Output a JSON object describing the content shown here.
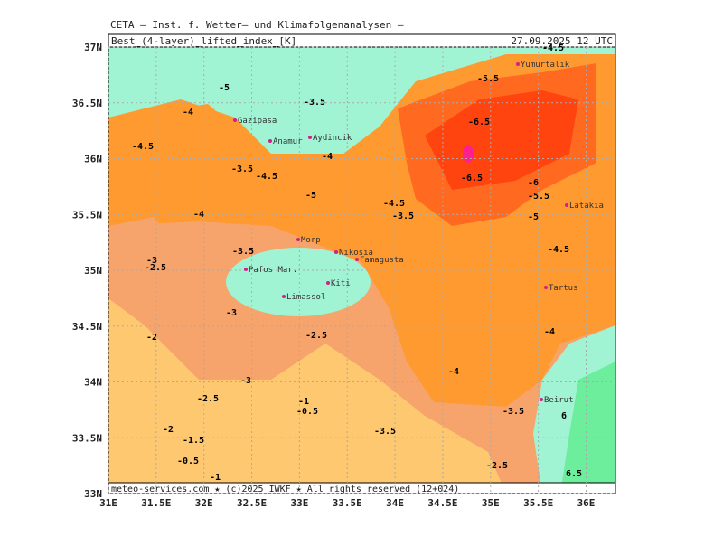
{
  "header": {
    "title": "CETA – Inst. f. Wetter– und Klimafolgenanalysen –",
    "parameter": "Best_(4-layer)_lifted_index_[K]",
    "valid_time": "27.09.2025 12 UTC"
  },
  "lat_ticks": [
    {
      "value": 37,
      "label": "37N"
    },
    {
      "value": 36.5,
      "label": "36.5N"
    },
    {
      "value": 36,
      "label": "36N"
    },
    {
      "value": 35.5,
      "label": "35.5N"
    },
    {
      "value": 35,
      "label": "35N"
    },
    {
      "value": 34.5,
      "label": "34.5N"
    },
    {
      "value": 34,
      "label": "34N"
    },
    {
      "value": 33.5,
      "label": "33.5N"
    },
    {
      "value": 33,
      "label": "33N"
    }
  ],
  "lon_ticks": [
    {
      "value": 31,
      "label": "31E"
    },
    {
      "value": 31.5,
      "label": "31.5E"
    },
    {
      "value": 32,
      "label": "32E"
    },
    {
      "value": 32.5,
      "label": "32.5E"
    },
    {
      "value": 33,
      "label": "33E"
    },
    {
      "value": 33.5,
      "label": "33.5E"
    },
    {
      "value": 34,
      "label": "34E"
    },
    {
      "value": 34.5,
      "label": "34.5E"
    },
    {
      "value": 35,
      "label": "35E"
    },
    {
      "value": 35.5,
      "label": "35.5E"
    },
    {
      "value": 36,
      "label": "36E"
    }
  ],
  "places": [
    "Gazipasa",
    "Anamur",
    "Aydincik",
    "Yumurtalik",
    "Latakia",
    "Morp",
    "Nikosia",
    "Famagusta",
    "Pafos Mar.",
    "Limassol",
    "Kiti",
    "Tartus",
    "Beirut"
  ],
  "contour_labels": [
    "-5",
    "-3.5",
    "-4.5",
    "-4",
    "-3.5",
    "-4.5",
    "-4",
    "-5",
    "-4",
    "-4.5",
    "-3.5",
    "-6.5",
    "-6.5",
    "-5.5",
    "-6",
    "-5.5",
    "-5",
    "-4.5",
    "-4",
    "-3.5",
    "-3",
    "-2.5",
    "-3",
    "-2",
    "-3",
    "-2.5",
    "-1",
    "-0.5",
    "-2",
    "-1.5",
    "-3.5",
    "-0.5",
    "-1",
    "-4",
    "-3.5",
    "-2.5",
    "6",
    "6.5",
    "-2.5",
    "-4.5"
  ],
  "footer": "meteo-services.com ★ (c)2025 IWKF ★ All rights reserved (12+024)"
}
